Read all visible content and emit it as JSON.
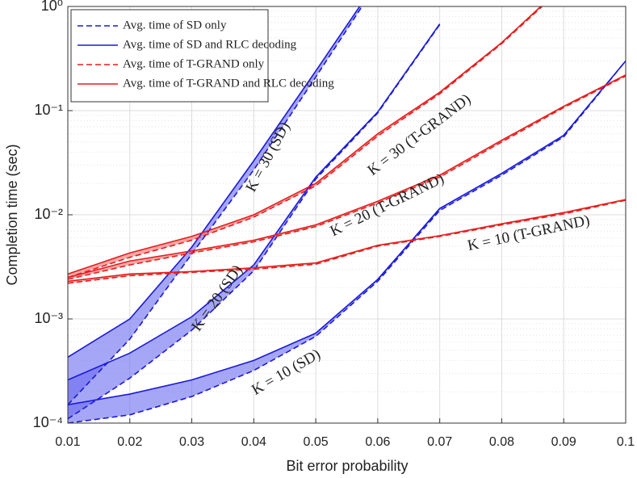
{
  "chart_data": {
    "type": "line",
    "xlabel": "Bit error probability",
    "ylabel": "Completion time (sec)",
    "log_y": true,
    "grid": true,
    "minor_grid": true,
    "legend": "upper left",
    "x": [
      0.01,
      0.02,
      0.03,
      0.04,
      0.05,
      0.06,
      0.07,
      0.08,
      0.09,
      0.1
    ],
    "xlim": [
      0.01,
      0.1
    ],
    "xticks": [
      0.01,
      0.02,
      0.03,
      0.04,
      0.05,
      0.06,
      0.07,
      0.08,
      0.09,
      0.1
    ],
    "ylim": [
      0.0001,
      1
    ],
    "yticks": [
      {
        "value": 0.0001,
        "label": "10⁻⁴"
      },
      {
        "value": 0.001,
        "label": "10⁻³"
      },
      {
        "value": 0.01,
        "label": "10⁻²"
      },
      {
        "value": 0.1,
        "label": "10⁻¹"
      },
      {
        "value": 1,
        "label": "10⁰"
      }
    ],
    "series": [
      {
        "name": "Avg. time of SD only",
        "color": "#1a1adb",
        "dashed": true,
        "fill": "#6a6af0",
        "values": [
          [
            0.0001,
            0.00012,
            0.00018,
            0.00032,
            0.00068,
            0.0023,
            0.011,
            0.024,
            0.056,
            0.3
          ],
          [
            0.00011,
            0.00027,
            0.00078,
            0.0029,
            0.022,
            0.095,
            0.67,
            null,
            null,
            null
          ],
          [
            0.00015,
            0.00064,
            0.0042,
            0.027,
            0.21,
            1.7,
            null,
            null,
            null,
            null
          ]
        ]
      },
      {
        "name": "Avg. time of SD and RLC decoding",
        "color": "#1a1adb",
        "dashed": false,
        "values": [
          [
            0.00015,
            0.00019,
            0.00026,
            0.0004,
            0.00073,
            0.0024,
            0.0115,
            0.025,
            0.058,
            0.3
          ],
          [
            0.00026,
            0.00047,
            0.00105,
            0.0033,
            0.023,
            0.097,
            0.68,
            null,
            null,
            null
          ],
          [
            0.00043,
            0.001,
            0.0049,
            0.033,
            0.24,
            1.8,
            null,
            null,
            null,
            null
          ]
        ]
      },
      {
        "name": "Avg. time of T-GRAND only",
        "color": "#e81c1c",
        "dashed": true,
        "fill": "#f07070",
        "values": [
          [
            0.0022,
            0.0026,
            0.0028,
            0.003,
            0.00335,
            0.005,
            0.0062,
            0.008,
            0.0102,
            0.0138
          ],
          [
            0.0024,
            0.0033,
            0.0043,
            0.0055,
            0.0077,
            0.013,
            0.023,
            0.05,
            0.107,
            0.215
          ],
          [
            0.0025,
            0.0039,
            0.0057,
            0.0095,
            0.019,
            0.057,
            0.145,
            0.44,
            1.55,
            null
          ]
        ]
      },
      {
        "name": "Avg. time of T-GRAND and RLC decoding",
        "color": "#e81c1c",
        "dashed": false,
        "values": [
          [
            0.0023,
            0.0027,
            0.00285,
            0.0031,
            0.00345,
            0.0051,
            0.0063,
            0.0082,
            0.0105,
            0.014
          ],
          [
            0.0025,
            0.0036,
            0.0045,
            0.0057,
            0.008,
            0.0135,
            0.024,
            0.052,
            0.11,
            0.22
          ],
          [
            0.0027,
            0.0043,
            0.0062,
            0.01,
            0.02,
            0.06,
            0.15,
            0.45,
            1.6,
            null
          ]
        ]
      }
    ],
    "annotations": [
      "K = 10 (SD)",
      "K = 20 (SD)",
      "K = 30 (SD)",
      "K = 10 (T-GRAND)",
      "K = 20 (T-GRAND)",
      "K = 30 (T-GRAND)"
    ]
  }
}
